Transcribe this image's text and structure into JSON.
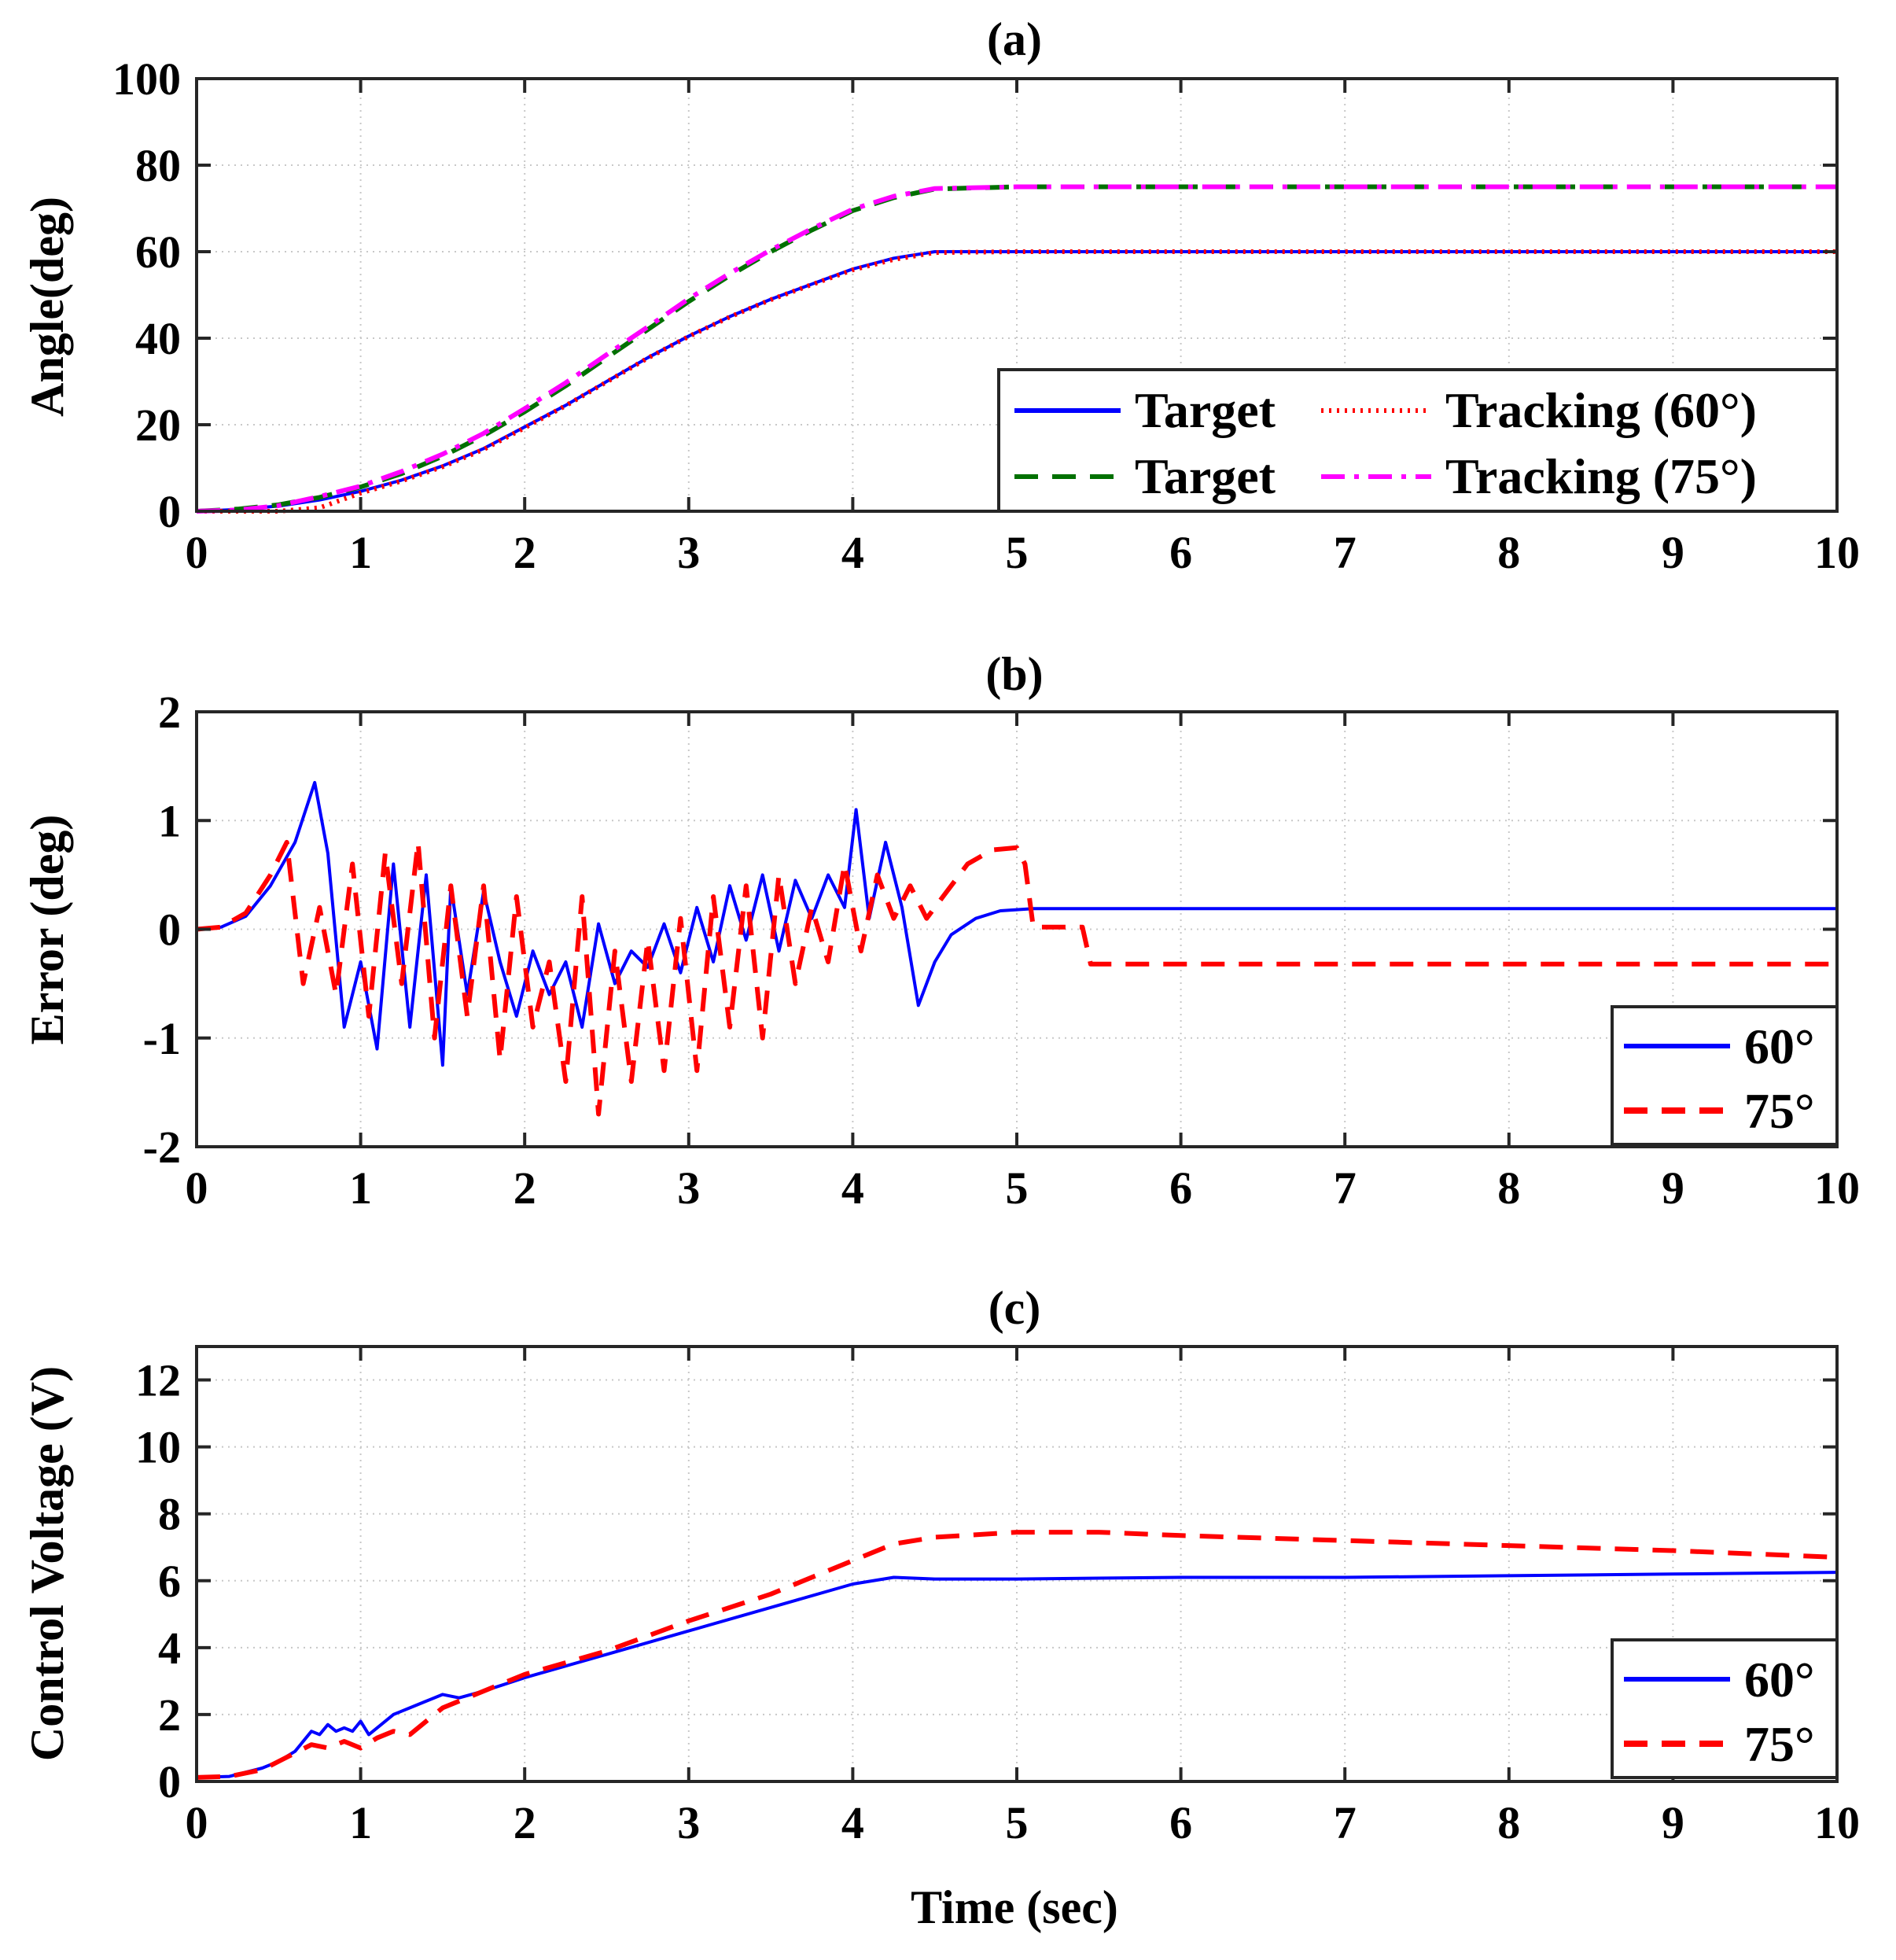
{
  "chart_data": [
    {
      "type": "line",
      "title": "(a)",
      "xlabel": "",
      "ylabel": "Angle(deg)",
      "xlim": [
        0,
        10
      ],
      "ylim": [
        0,
        100
      ],
      "xticks": [
        "0",
        "1",
        "2",
        "3",
        "4",
        "5",
        "6",
        "7",
        "8",
        "9",
        "10"
      ],
      "yticks": [
        "0",
        "20",
        "40",
        "60",
        "80",
        "100"
      ],
      "grid": true,
      "legend": {
        "placement": "bottom-right",
        "columns": 2
      },
      "series": [
        {
          "name": "Target",
          "color": "#0000ff",
          "style": "solid",
          "x": [
            0,
            0.25,
            0.5,
            0.75,
            1,
            1.25,
            1.5,
            1.75,
            2,
            2.25,
            2.5,
            2.75,
            3,
            3.25,
            3.5,
            3.75,
            4,
            4.25,
            4.5,
            5,
            6,
            7,
            8,
            9,
            10
          ],
          "y": [
            0,
            0.4,
            1.2,
            2.6,
            4.6,
            7.2,
            10.5,
            14.5,
            19.5,
            24.5,
            30,
            35.5,
            40.5,
            45,
            49,
            52.5,
            56,
            58.5,
            60,
            60,
            60,
            60,
            60,
            60,
            60
          ]
        },
        {
          "name": "Tracking (60°)",
          "color": "#ff0000",
          "style": "dotted",
          "x": [
            0,
            0.25,
            0.5,
            0.75,
            1,
            1.25,
            1.5,
            1.75,
            2,
            2.25,
            2.5,
            2.75,
            3,
            3.25,
            3.5,
            3.75,
            4,
            4.25,
            4.5,
            5,
            6,
            7,
            8,
            9,
            10
          ],
          "y": [
            0,
            0,
            0,
            0.8,
            4.2,
            7,
            10.3,
            14.3,
            19.3,
            24.4,
            29.9,
            35.4,
            40.4,
            44.9,
            48.9,
            52.4,
            55.8,
            58.2,
            59.8,
            60,
            60,
            60,
            60,
            60,
            60
          ]
        },
        {
          "name": "Target",
          "color": "#007000",
          "style": "dashed",
          "x": [
            0,
            0.25,
            0.5,
            0.75,
            1,
            1.25,
            1.5,
            1.75,
            2,
            2.25,
            2.5,
            2.75,
            3,
            3.25,
            3.5,
            3.75,
            4,
            4.25,
            4.5,
            5,
            6,
            7,
            8,
            9,
            10
          ],
          "y": [
            0,
            0.5,
            1.5,
            3.2,
            5.6,
            8.7,
            12.7,
            17.5,
            23,
            29,
            35.5,
            42,
            48.5,
            54.5,
            60,
            65,
            69.5,
            72.5,
            74.5,
            75,
            75,
            75,
            75,
            75,
            75
          ]
        },
        {
          "name": "Tracking (75°)",
          "color": "#ff00ff",
          "style": "dashdot",
          "x": [
            0,
            0.25,
            0.5,
            0.75,
            1,
            1.25,
            1.5,
            1.75,
            2,
            2.25,
            2.5,
            2.75,
            3,
            3.25,
            3.5,
            3.75,
            4,
            4.25,
            4.5,
            5,
            6,
            7,
            8,
            9,
            10
          ],
          "y": [
            0,
            0.3,
            1.3,
            3.4,
            5.8,
            9.2,
            13.2,
            18,
            23.7,
            29.7,
            36.2,
            42.6,
            49.1,
            55,
            60.4,
            65.3,
            69.8,
            72.8,
            74.6,
            75,
            75,
            75,
            75,
            75,
            75
          ]
        }
      ]
    },
    {
      "type": "line",
      "title": "(b)",
      "xlabel": "",
      "ylabel": "Error (deg)",
      "xlim": [
        0,
        10
      ],
      "ylim": [
        -2,
        2
      ],
      "xticks": [
        "0",
        "1",
        "2",
        "3",
        "4",
        "5",
        "6",
        "7",
        "8",
        "9",
        "10"
      ],
      "yticks": [
        "-2",
        "-1",
        "0",
        "1",
        "2"
      ],
      "grid": true,
      "legend": {
        "placement": "bottom-right",
        "columns": 1
      },
      "series": [
        {
          "name": "60°",
          "color": "#0000ff",
          "style": "solid",
          "x": [
            0,
            0.15,
            0.3,
            0.45,
            0.6,
            0.72,
            0.8,
            0.9,
            1.0,
            1.1,
            1.2,
            1.3,
            1.4,
            1.5,
            1.55,
            1.65,
            1.75,
            1.85,
            1.95,
            2.05,
            2.15,
            2.25,
            2.35,
            2.45,
            2.55,
            2.65,
            2.75,
            2.85,
            2.95,
            3.05,
            3.15,
            3.25,
            3.35,
            3.45,
            3.55,
            3.65,
            3.75,
            3.85,
            3.95,
            4.02,
            4.1,
            4.2,
            4.3,
            4.4,
            4.5,
            4.6,
            4.75,
            4.9,
            5.1,
            6,
            7,
            8,
            9,
            10
          ],
          "y": [
            0,
            0.02,
            0.12,
            0.4,
            0.8,
            1.35,
            0.7,
            -0.9,
            -0.3,
            -1.1,
            0.6,
            -0.9,
            0.5,
            -1.25,
            0.4,
            -0.6,
            0.35,
            -0.3,
            -0.8,
            -0.2,
            -0.6,
            -0.3,
            -0.9,
            0.05,
            -0.5,
            -0.2,
            -0.35,
            0.05,
            -0.4,
            0.2,
            -0.3,
            0.4,
            -0.1,
            0.5,
            -0.2,
            0.45,
            0.1,
            0.5,
            0.2,
            1.1,
            0.1,
            0.8,
            0.2,
            -0.7,
            -0.3,
            -0.05,
            0.1,
            0.17,
            0.19,
            0.19,
            0.19,
            0.19,
            0.19,
            0.19
          ]
        },
        {
          "name": "75°",
          "color": "#ff0000",
          "style": "dashed",
          "x": [
            0,
            0.15,
            0.3,
            0.45,
            0.55,
            0.65,
            0.75,
            0.85,
            0.95,
            1.05,
            1.15,
            1.25,
            1.35,
            1.45,
            1.55,
            1.65,
            1.75,
            1.85,
            1.95,
            2.05,
            2.15,
            2.25,
            2.35,
            2.45,
            2.55,
            2.65,
            2.75,
            2.85,
            2.95,
            3.05,
            3.15,
            3.25,
            3.35,
            3.45,
            3.55,
            3.65,
            3.75,
            3.85,
            3.95,
            4.05,
            4.15,
            4.25,
            4.35,
            4.45,
            4.55,
            4.7,
            4.85,
            5.0,
            5.05,
            5.1,
            5.4,
            5.45,
            6,
            7,
            8,
            9,
            10
          ],
          "y": [
            0,
            0.02,
            0.15,
            0.5,
            0.8,
            -0.5,
            0.2,
            -0.6,
            0.6,
            -0.8,
            0.7,
            -0.5,
            0.8,
            -1.0,
            0.4,
            -0.8,
            0.4,
            -1.2,
            0.3,
            -0.9,
            -0.3,
            -1.4,
            0.3,
            -1.7,
            -0.2,
            -1.4,
            -0.1,
            -1.3,
            0.1,
            -1.3,
            0.3,
            -0.9,
            0.4,
            -1.0,
            0.5,
            -0.5,
            0.2,
            -0.3,
            0.6,
            -0.2,
            0.5,
            0.1,
            0.4,
            0.1,
            0.3,
            0.6,
            0.73,
            0.75,
            0.6,
            0.02,
            0.02,
            -0.32,
            -0.32,
            -0.32,
            -0.32,
            -0.32,
            -0.32
          ]
        }
      ]
    },
    {
      "type": "line",
      "title": "(c)",
      "xlabel": "Time (sec)",
      "ylabel": "Control Voltage (V)",
      "xlim": [
        0,
        10
      ],
      "ylim": [
        0,
        13
      ],
      "xticks": [
        "0",
        "1",
        "2",
        "3",
        "4",
        "5",
        "6",
        "7",
        "8",
        "9",
        "10"
      ],
      "yticks": [
        "0",
        "2",
        "4",
        "6",
        "8",
        "10",
        "12"
      ],
      "grid": true,
      "legend": {
        "placement": "bottom-right",
        "columns": 1
      },
      "series": [
        {
          "name": "60°",
          "color": "#0000ff",
          "style": "solid",
          "x": [
            0,
            0.2,
            0.4,
            0.5,
            0.6,
            0.7,
            0.75,
            0.8,
            0.85,
            0.9,
            0.95,
            1.0,
            1.05,
            1.1,
            1.2,
            1.3,
            1.4,
            1.5,
            1.6,
            1.75,
            2,
            2.5,
            3,
            3.5,
            4,
            4.25,
            4.5,
            5,
            6,
            7,
            8,
            9,
            10
          ],
          "y": [
            0.12,
            0.15,
            0.4,
            0.6,
            0.9,
            1.5,
            1.4,
            1.7,
            1.5,
            1.6,
            1.5,
            1.8,
            1.4,
            1.6,
            2.0,
            2.2,
            2.4,
            2.6,
            2.5,
            2.7,
            3.1,
            3.8,
            4.5,
            5.2,
            5.9,
            6.1,
            6.05,
            6.05,
            6.1,
            6.1,
            6.15,
            6.2,
            6.25
          ]
        },
        {
          "name": "75°",
          "color": "#ff0000",
          "style": "dashed",
          "x": [
            0,
            0.2,
            0.4,
            0.5,
            0.6,
            0.7,
            0.8,
            0.9,
            1.0,
            1.1,
            1.2,
            1.3,
            1.4,
            1.5,
            1.75,
            2,
            2.5,
            3,
            3.5,
            4,
            4.25,
            4.5,
            5,
            5.5,
            6,
            7,
            8,
            9,
            10
          ],
          "y": [
            0.12,
            0.15,
            0.35,
            0.6,
            0.85,
            1.1,
            1.0,
            1.2,
            1.0,
            1.3,
            1.5,
            1.4,
            1.8,
            2.2,
            2.7,
            3.2,
            3.9,
            4.8,
            5.6,
            6.6,
            7.1,
            7.3,
            7.45,
            7.45,
            7.35,
            7.2,
            7.05,
            6.9,
            6.7
          ]
        }
      ]
    }
  ],
  "legends": [
    {
      "entries": [
        {
          "label": "Target",
          "color": "#0000ff",
          "style": "solid"
        },
        {
          "label": "Tracking (60°)",
          "color": "#ff0000",
          "style": "dotted"
        },
        {
          "label": "Target",
          "color": "#007000",
          "style": "dashed"
        },
        {
          "label": "Tracking (75°)",
          "color": "#ff00ff",
          "style": "dashdot"
        }
      ]
    },
    {
      "entries": [
        {
          "label": "60°",
          "color": "#0000ff",
          "style": "solid"
        },
        {
          "label": "75°",
          "color": "#ff0000",
          "style": "dashed"
        }
      ]
    },
    {
      "entries": [
        {
          "label": "60°",
          "color": "#0000ff",
          "style": "solid"
        },
        {
          "label": "75°",
          "color": "#ff0000",
          "style": "dashed"
        }
      ]
    }
  ]
}
